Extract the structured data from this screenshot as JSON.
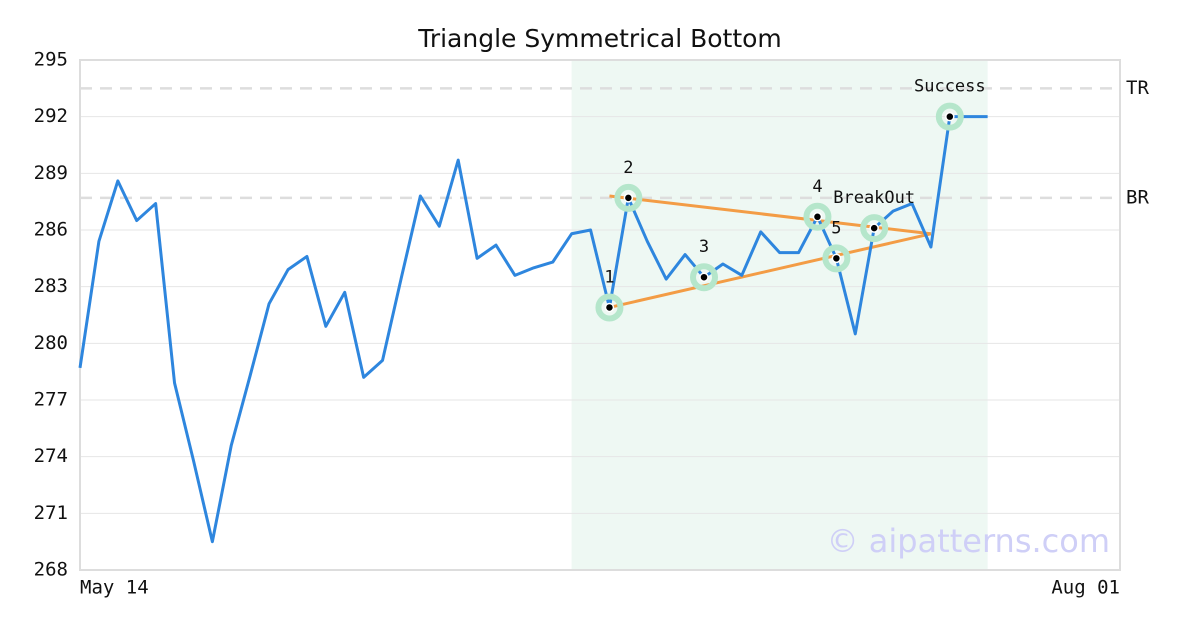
{
  "chart_data": {
    "type": "line",
    "title": "Triangle Symmetrical Bottom",
    "categories": [
      "May 14",
      null,
      null,
      null,
      null,
      null,
      null,
      null,
      null,
      null,
      null,
      null,
      null,
      null,
      null,
      null,
      null,
      null,
      null,
      null,
      null,
      null,
      null,
      null,
      null,
      null,
      null,
      null,
      null,
      null,
      null,
      null,
      null,
      null,
      null,
      null,
      null,
      null,
      null,
      null,
      null,
      null,
      null,
      null,
      null,
      null,
      null,
      null,
      null,
      null,
      null,
      null,
      null,
      null,
      null,
      "Aug 01"
    ],
    "series": [
      {
        "color": "#2e86de",
        "values": [
          278.7,
          285.4,
          288.6,
          286.5,
          287.4,
          277.9,
          273.8,
          269.5,
          274.6,
          278.3,
          282.1,
          283.9,
          284.6,
          280.9,
          282.7,
          278.2,
          279.1,
          283.5,
          287.8,
          286.2,
          289.7,
          284.5,
          285.2,
          283.6,
          284.0,
          284.3,
          285.8,
          286.0,
          281.9,
          287.7,
          285.4,
          283.4,
          284.7,
          283.5,
          284.2,
          283.6,
          285.9,
          284.8,
          284.8,
          286.7,
          284.5,
          280.5,
          286.1,
          287.0,
          287.4,
          285.1,
          292.0,
          292.0,
          292.0,
          null,
          null,
          null,
          null,
          null,
          null,
          null
        ]
      }
    ],
    "markers": {
      "values": [
        null,
        null,
        null,
        null,
        null,
        null,
        null,
        null,
        null,
        null,
        null,
        null,
        null,
        null,
        null,
        null,
        null,
        null,
        null,
        null,
        null,
        null,
        null,
        null,
        null,
        null,
        null,
        null,
        281.9,
        287.7,
        null,
        null,
        null,
        283.5,
        null,
        null,
        null,
        null,
        null,
        286.7,
        284.5,
        null,
        286.1,
        null,
        null,
        null,
        292.0,
        null,
        null,
        null,
        null,
        null,
        null,
        null,
        null,
        null
      ],
      "labels": [
        null,
        null,
        null,
        null,
        null,
        null,
        null,
        null,
        null,
        null,
        null,
        null,
        null,
        null,
        null,
        null,
        null,
        null,
        null,
        null,
        null,
        null,
        null,
        null,
        null,
        null,
        null,
        null,
        "1",
        "2",
        null,
        null,
        null,
        "3",
        null,
        null,
        null,
        null,
        null,
        "4",
        "5",
        null,
        "BreakOut",
        null,
        null,
        null,
        "Success",
        null,
        null,
        null,
        null,
        null,
        null,
        null,
        null,
        null
      ]
    },
    "trendlines": [
      {
        "color": "#f39c45",
        "x": [
          28,
          45
        ],
        "values": [
          287.8,
          285.8
        ]
      },
      {
        "color": "#f39c45",
        "x": [
          28,
          45
        ],
        "values": [
          281.9,
          285.8
        ]
      }
    ],
    "levels": [
      {
        "label": "TR",
        "value": 293.5
      },
      {
        "label": "BR",
        "value": 287.7
      }
    ],
    "highlight": [
      26,
      48
    ],
    "watermark": "© aipatterns.com",
    "ylim": [
      268,
      295
    ],
    "yticks": [
      268,
      271,
      274,
      277,
      280,
      283,
      286,
      289,
      292,
      295
    ],
    "grid": true
  }
}
